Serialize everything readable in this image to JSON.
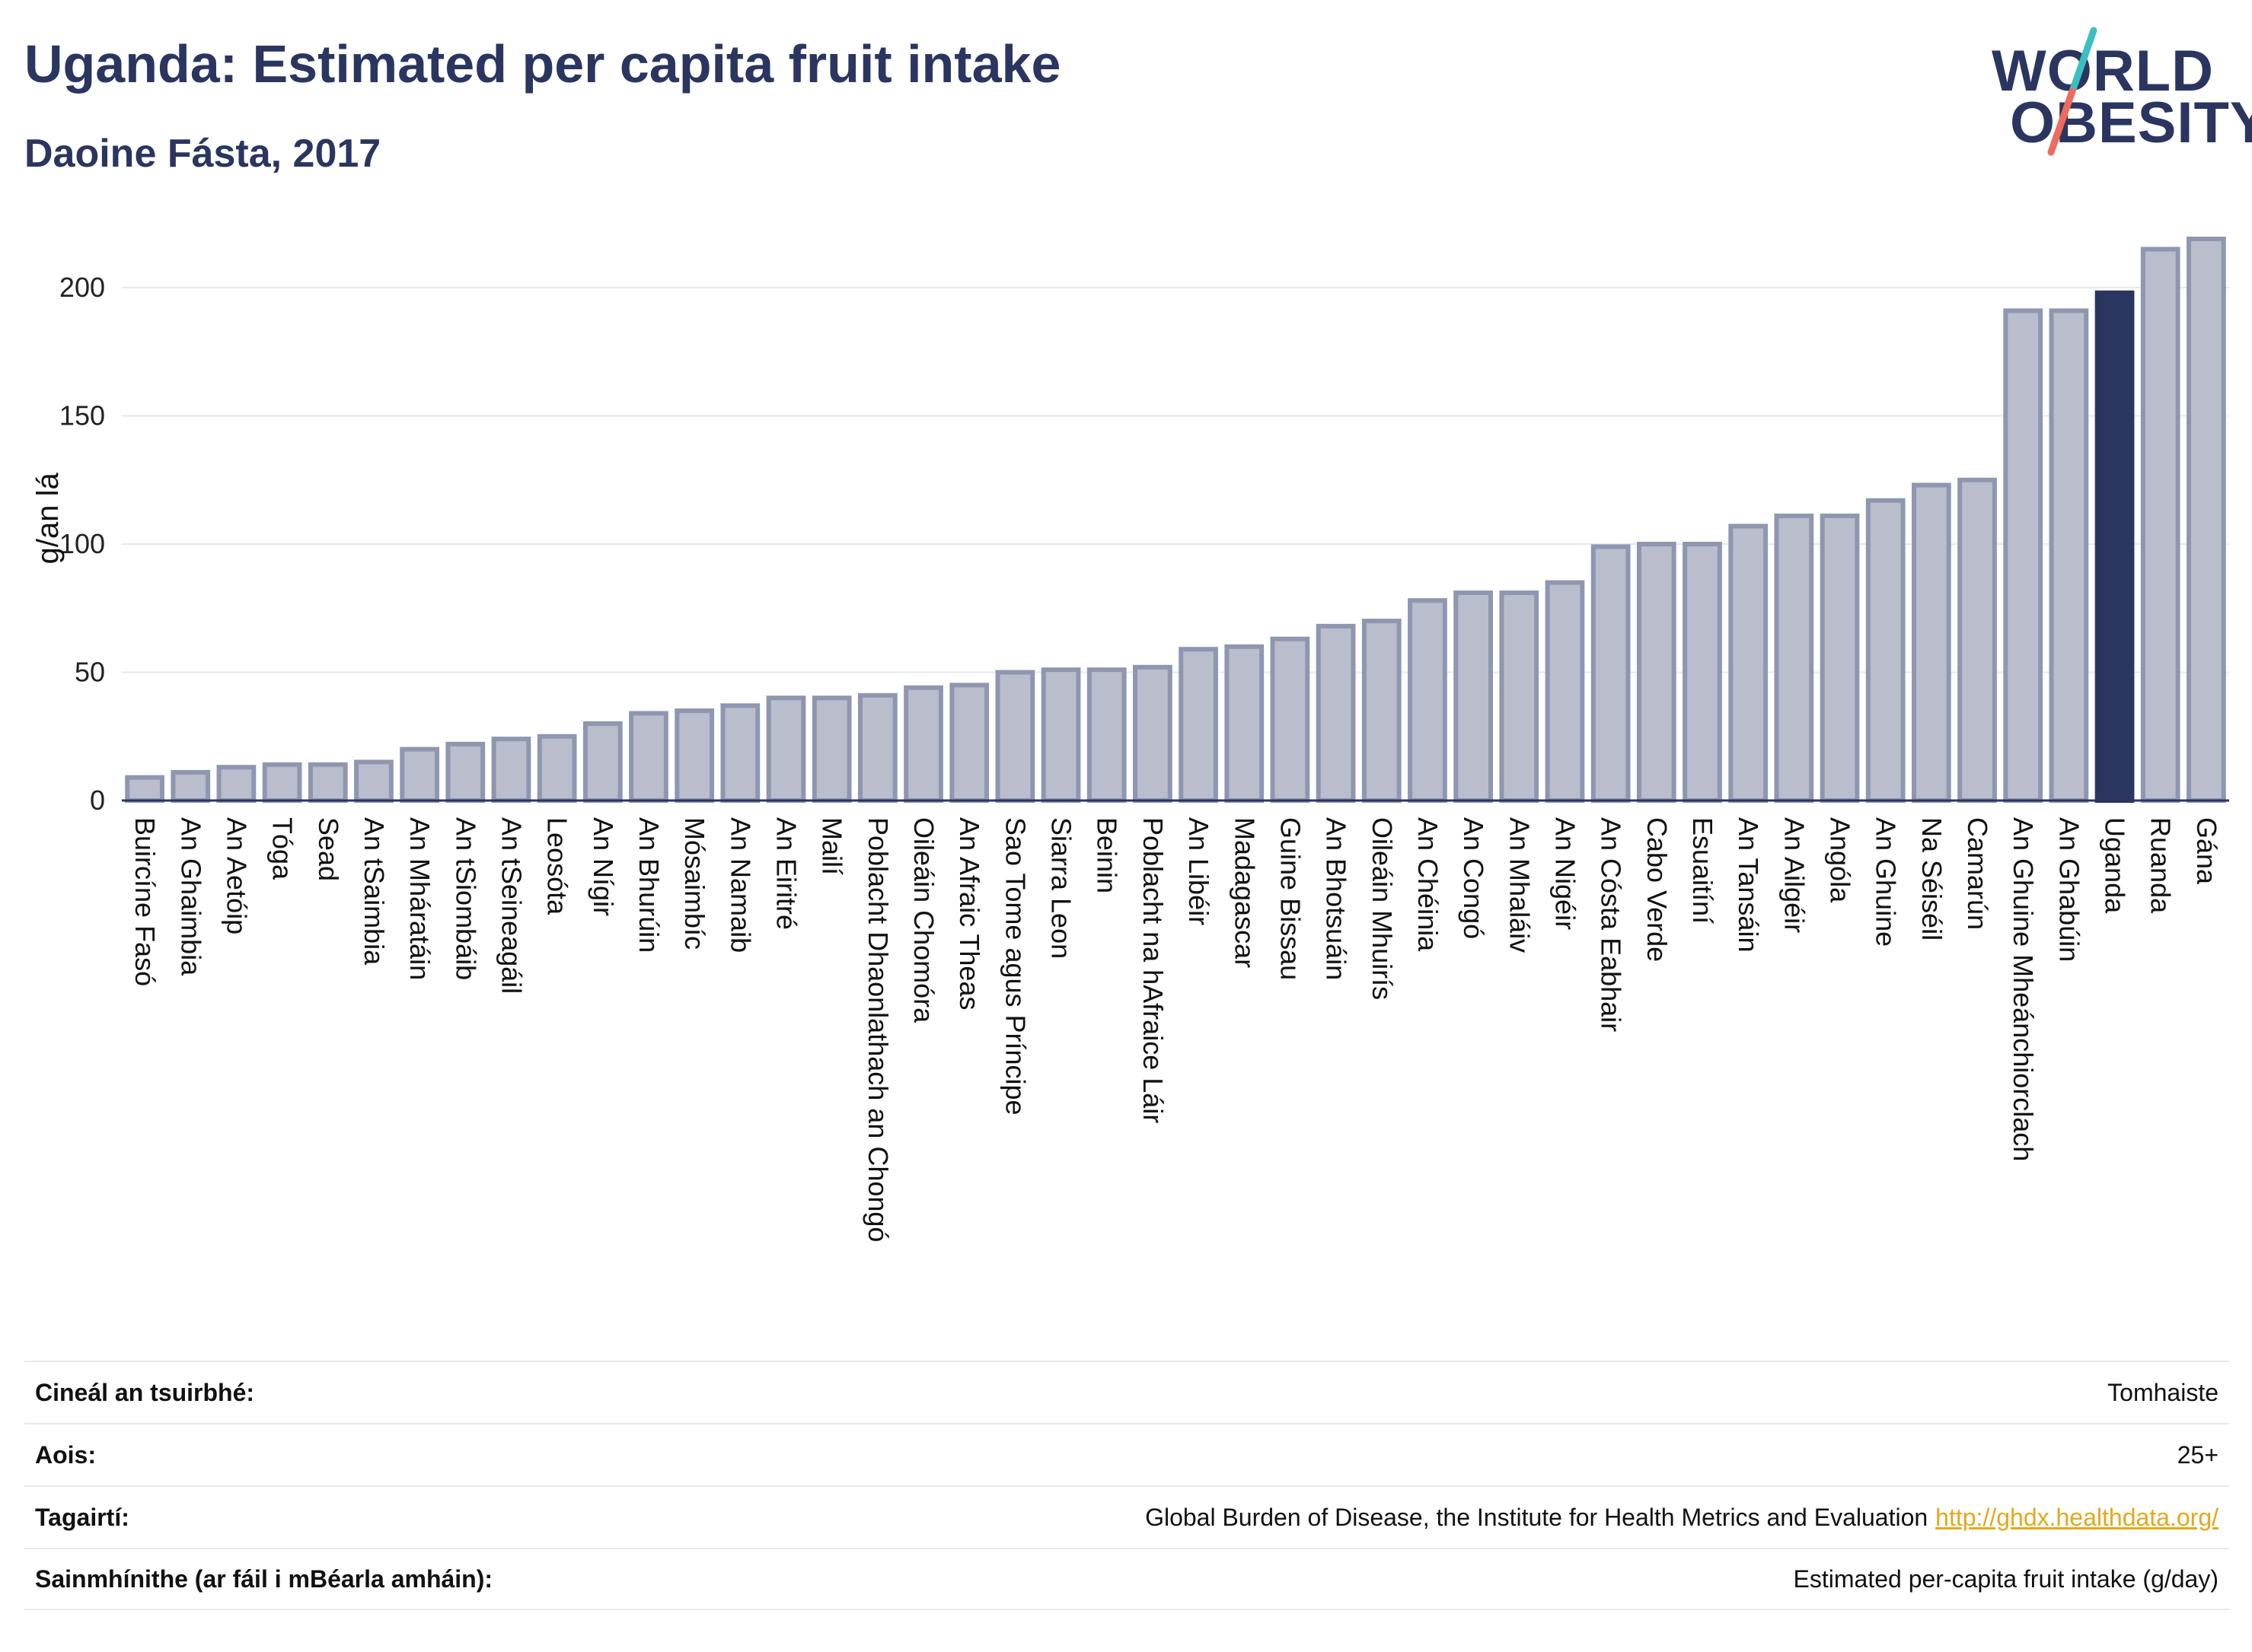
{
  "header": {
    "title": "Uganda: Estimated per capita fruit intake",
    "subtitle": "Daoine Fásta, 2017"
  },
  "logo": {
    "line1": "WORLD",
    "line2": "OBESITY",
    "colors": {
      "text": "#2a3560",
      "slash_top": "#3bbfc1",
      "slash_bottom": "#ee6b5e"
    }
  },
  "colors": {
    "bar_fill": "#b9bdcc",
    "bar_stroke": "#8f96b0",
    "highlight": "#2a3560",
    "grid": "#e6e8ee",
    "axis": "#2a3560"
  },
  "chart_data": {
    "type": "bar",
    "ylabel": "g/an lá",
    "xlabel": "",
    "ylim": [
      0,
      220
    ],
    "yticks": [
      0,
      50,
      100,
      150,
      200
    ],
    "grid": true,
    "highlight": "Uganda",
    "categories": [
      "Buircíne Fasó",
      "An Ghaimbia",
      "An Aetóip",
      "Tóga",
      "Sead",
      "An tSaimbia",
      "An Mháratáin",
      "An tSiombáib",
      "An tSeineagáil",
      "Leosóta",
      "An Nígir",
      "An Bhurúin",
      "Mósaimbíc",
      "An Namaib",
      "An Eiritré",
      "Mailí",
      "Poblacht Dhaonlathach an Chongó",
      "Oileáin Chomóra",
      "An Afraic Theas",
      "Sao Tome agus Príncipe",
      "Siarra Leon",
      "Beinin",
      "Poblacht na hAfraice Láir",
      "An Libéir",
      "Madagascar",
      "Guine Bissau",
      "An Bhotsuáin",
      "Oileáin Mhuirís",
      "An Chéinia",
      "An Congó",
      "An Mhaláiv",
      "An Nigéir",
      "An Cósta Eabhair",
      "Cabo Verde",
      "Esuaitíní",
      "An Tansáin",
      "An Ailgéir",
      "Angóla",
      "An Ghuine",
      "Na Séiséil",
      "Camarún",
      "An Ghuine Mheánchiorclach",
      "An Ghabúin",
      "Uganda",
      "Ruanda",
      "Gána"
    ],
    "values": [
      9,
      11,
      13,
      14,
      14,
      15,
      20,
      22,
      24,
      25,
      30,
      34,
      35,
      37,
      40,
      40,
      41,
      44,
      45,
      50,
      51,
      51,
      52,
      59,
      60,
      63,
      68,
      70,
      78,
      81,
      81,
      85,
      99,
      100,
      100,
      107,
      111,
      111,
      117,
      123,
      125,
      191,
      191,
      198,
      215,
      219
    ]
  },
  "info": [
    {
      "key": "Cineál an tsuirbhé:",
      "value": "Tomhaiste",
      "link": ""
    },
    {
      "key": "Aois:",
      "value": "25+",
      "link": ""
    },
    {
      "key": "Tagairtí:",
      "value": "Global Burden of Disease, the Institute for Health Metrics and Evaluation",
      "link": "http://ghdx.healthdata.org/"
    },
    {
      "key": "Sainmhínithe (ar fáil i mBéarla amháin):",
      "value": "Estimated per-capita fruit intake (g/day)",
      "link": ""
    }
  ]
}
